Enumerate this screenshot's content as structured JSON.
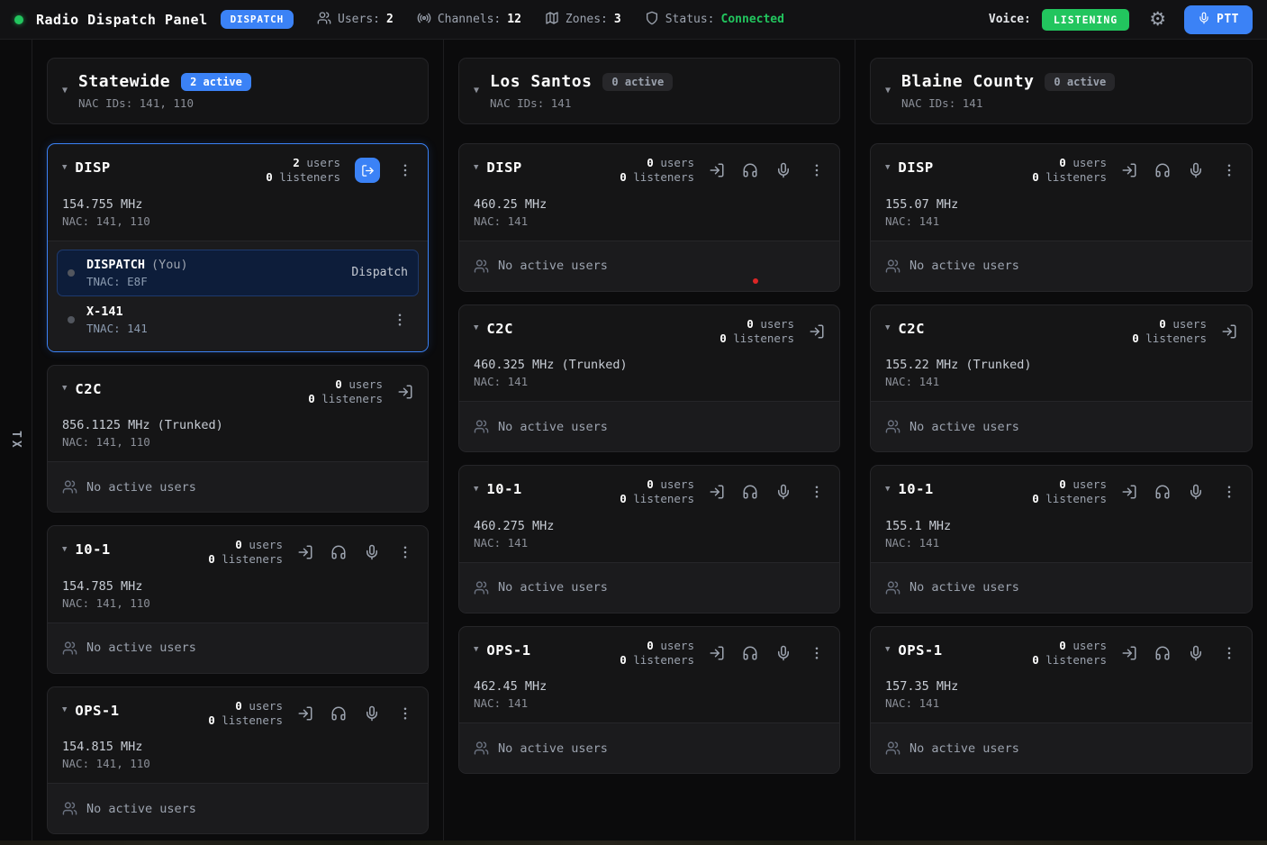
{
  "topbar": {
    "title": "Radio Dispatch Panel",
    "role_badge": "DISPATCH",
    "stats": [
      {
        "icon": "users-icon",
        "label": "Users:",
        "value": "2",
        "green": false
      },
      {
        "icon": "broadcast-icon",
        "label": "Channels:",
        "value": "12",
        "green": false
      },
      {
        "icon": "map-icon",
        "label": "Zones:",
        "value": "3",
        "green": false
      },
      {
        "icon": "shield-icon",
        "label": "Status:",
        "value": "Connected",
        "green": true
      }
    ],
    "voice_label": "Voice:",
    "voice_state": "LISTENING",
    "ptt_label": "PTT"
  },
  "side_tab": {
    "label": "TX"
  },
  "labels": {
    "users_suffix": "users",
    "listeners_suffix": "listeners",
    "no_active_users": "No active users"
  },
  "colors": {
    "accent": "#3b82f6",
    "green": "#22c55e",
    "danger": "#dc2626"
  },
  "zones": [
    {
      "name": "Statewide",
      "active_badge": "2 active",
      "highlight": true,
      "nac_ids": "NAC IDs: 141, 110",
      "channels": [
        {
          "name": "DISP",
          "users": "2",
          "listeners": "0",
          "freq": "154.755 MHz",
          "nac": "NAC: 141, 110",
          "joined": true,
          "actions": [
            "leave",
            "menu"
          ],
          "members": [
            {
              "name": "DISPATCH",
              "you": "(You)",
              "tnac": "TNAC: E8F",
              "role": "Dispatch",
              "selected": true
            },
            {
              "name": "X-141",
              "tnac": "TNAC: 141",
              "menu": true
            }
          ]
        },
        {
          "name": "C2C",
          "users": "0",
          "listeners": "0",
          "freq": "856.1125 MHz (Trunked)",
          "nac": "NAC: 141, 110",
          "actions": [
            "join"
          ]
        },
        {
          "name": "10-1",
          "users": "0",
          "listeners": "0",
          "freq": "154.785 MHz",
          "nac": "NAC: 141, 110",
          "actions": [
            "join",
            "listen",
            "mic",
            "menu"
          ]
        },
        {
          "name": "OPS-1",
          "users": "0",
          "listeners": "0",
          "freq": "154.815 MHz",
          "nac": "NAC: 141, 110",
          "actions": [
            "join",
            "listen",
            "mic",
            "menu"
          ]
        }
      ]
    },
    {
      "name": "Los Santos",
      "active_badge": "0 active",
      "highlight": false,
      "nac_ids": "NAC IDs: 141",
      "channels": [
        {
          "name": "DISP",
          "users": "0",
          "listeners": "0",
          "freq": "460.25 MHz",
          "nac": "NAC: 141",
          "actions": [
            "join",
            "listen",
            "mic",
            "menu"
          ]
        },
        {
          "name": "C2C",
          "users": "0",
          "listeners": "0",
          "freq": "460.325 MHz (Trunked)",
          "nac": "NAC: 141",
          "actions": [
            "join"
          ]
        },
        {
          "name": "10-1",
          "users": "0",
          "listeners": "0",
          "freq": "460.275 MHz",
          "nac": "NAC: 141",
          "actions": [
            "join",
            "listen",
            "mic",
            "menu"
          ]
        },
        {
          "name": "OPS-1",
          "users": "0",
          "listeners": "0",
          "freq": "462.45 MHz",
          "nac": "NAC: 141",
          "actions": [
            "join",
            "listen",
            "mic",
            "menu"
          ]
        }
      ]
    },
    {
      "name": "Blaine County",
      "active_badge": "0 active",
      "highlight": false,
      "nac_ids": "NAC IDs: 141",
      "channels": [
        {
          "name": "DISP",
          "users": "0",
          "listeners": "0",
          "freq": "155.07 MHz",
          "nac": "NAC: 141",
          "actions": [
            "join",
            "listen",
            "mic",
            "menu"
          ]
        },
        {
          "name": "C2C",
          "users": "0",
          "listeners": "0",
          "freq": "155.22 MHz (Trunked)",
          "nac": "NAC: 141",
          "actions": [
            "join"
          ]
        },
        {
          "name": "10-1",
          "users": "0",
          "listeners": "0",
          "freq": "155.1 MHz",
          "nac": "NAC: 141",
          "actions": [
            "join",
            "listen",
            "mic",
            "menu"
          ]
        },
        {
          "name": "OPS-1",
          "users": "0",
          "listeners": "0",
          "freq": "157.35 MHz",
          "nac": "NAC: 141",
          "actions": [
            "join",
            "listen",
            "mic",
            "menu"
          ]
        }
      ]
    }
  ]
}
